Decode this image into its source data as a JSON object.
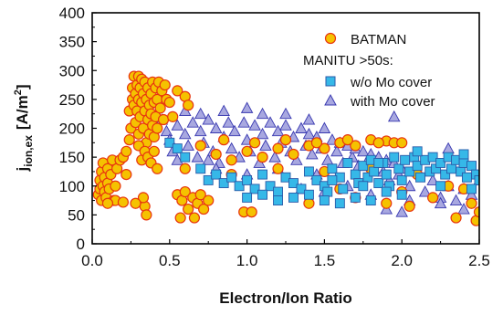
{
  "chart_data": {
    "type": "scatter",
    "xlabel": "Electron/Ion Ratio",
    "ylabel": "j",
    "ylabel_sub": "ion,ex",
    "ylabel_unit_pre": "[A/m",
    "ylabel_unit_sup": "2",
    "ylabel_unit_post": "]",
    "xlim": [
      0.0,
      2.5
    ],
    "ylim": [
      0,
      400
    ],
    "xticks": [
      "0.0",
      "0.5",
      "1.0",
      "1.5",
      "2.0",
      "2.5"
    ],
    "yticks": [
      "0",
      "50",
      "100",
      "150",
      "200",
      "250",
      "300",
      "350",
      "400"
    ],
    "grid": false,
    "legend_position": "top-right",
    "legend_heading": "MANITU >50s:",
    "colors": {
      "batman_fill": "#f5c200",
      "batman_edge": "#e8350f",
      "womo_fill": "#36b8e8",
      "womo_edge": "#2a5aa8",
      "withmo_fill": "#a8a8e0",
      "withmo_edge": "#3838b0"
    },
    "series": [
      {
        "name": "BATMAN",
        "marker": "circle",
        "points": [
          [
            0.04,
            85
          ],
          [
            0.05,
            95
          ],
          [
            0.05,
            110
          ],
          [
            0.06,
            125
          ],
          [
            0.06,
            75
          ],
          [
            0.07,
            100
          ],
          [
            0.07,
            140
          ],
          [
            0.08,
            90
          ],
          [
            0.08,
            115
          ],
          [
            0.09,
            80
          ],
          [
            0.1,
            105
          ],
          [
            0.1,
            130
          ],
          [
            0.11,
            95
          ],
          [
            0.12,
            120
          ],
          [
            0.13,
            145
          ],
          [
            0.14,
            75
          ],
          [
            0.15,
            100
          ],
          [
            0.16,
            130
          ],
          [
            0.18,
            145
          ],
          [
            0.2,
            150
          ],
          [
            0.22,
            160
          ],
          [
            0.22,
            120
          ],
          [
            0.24,
            180
          ],
          [
            0.24,
            230
          ],
          [
            0.25,
            200
          ],
          [
            0.26,
            250
          ],
          [
            0.26,
            270
          ],
          [
            0.27,
            240
          ],
          [
            0.27,
            290
          ],
          [
            0.28,
            260
          ],
          [
            0.28,
            210
          ],
          [
            0.29,
            275
          ],
          [
            0.29,
            230
          ],
          [
            0.3,
            290
          ],
          [
            0.3,
            250
          ],
          [
            0.3,
            190
          ],
          [
            0.31,
            270
          ],
          [
            0.31,
            220
          ],
          [
            0.32,
            285
          ],
          [
            0.32,
            245
          ],
          [
            0.33,
            200
          ],
          [
            0.33,
            260
          ],
          [
            0.34,
            230
          ],
          [
            0.34,
            280
          ],
          [
            0.35,
            175
          ],
          [
            0.35,
            250
          ],
          [
            0.36,
            215
          ],
          [
            0.36,
            270
          ],
          [
            0.37,
            240
          ],
          [
            0.37,
            190
          ],
          [
            0.38,
            260
          ],
          [
            0.38,
            225
          ],
          [
            0.39,
            280
          ],
          [
            0.39,
            205
          ],
          [
            0.4,
            245
          ],
          [
            0.4,
            185
          ],
          [
            0.41,
            270
          ],
          [
            0.41,
            220
          ],
          [
            0.42,
            250
          ],
          [
            0.42,
            200
          ],
          [
            0.43,
            280
          ],
          [
            0.44,
            235
          ],
          [
            0.45,
            265
          ],
          [
            0.46,
            215
          ],
          [
            0.47,
            275
          ],
          [
            0.48,
            250
          ],
          [
            0.5,
            245
          ],
          [
            0.52,
            220
          ],
          [
            0.55,
            265
          ],
          [
            0.6,
            255
          ],
          [
            0.62,
            240
          ],
          [
            0.3,
            170
          ],
          [
            0.32,
            145
          ],
          [
            0.34,
            160
          ],
          [
            0.36,
            150
          ],
          [
            0.38,
            140
          ],
          [
            0.4,
            160
          ],
          [
            0.42,
            130
          ],
          [
            0.34,
            65
          ],
          [
            0.35,
            50
          ],
          [
            0.33,
            80
          ],
          [
            0.28,
            70
          ],
          [
            0.15,
            75
          ],
          [
            0.1,
            70
          ],
          [
            0.2,
            72
          ],
          [
            0.55,
            85
          ],
          [
            0.58,
            75
          ],
          [
            0.6,
            90
          ],
          [
            0.62,
            60
          ],
          [
            0.65,
            80
          ],
          [
            0.68,
            70
          ],
          [
            0.7,
            85
          ],
          [
            0.72,
            60
          ],
          [
            0.75,
            75
          ],
          [
            0.57,
            45
          ],
          [
            0.66,
            45
          ],
          [
            0.98,
            55
          ],
          [
            1.03,
            55
          ],
          [
            0.8,
            155
          ],
          [
            0.9,
            145
          ],
          [
            1.0,
            160
          ],
          [
            1.1,
            150
          ],
          [
            1.2,
            165
          ],
          [
            1.3,
            155
          ],
          [
            1.4,
            170
          ],
          [
            1.5,
            165
          ],
          [
            1.6,
            175
          ],
          [
            1.7,
            170
          ],
          [
            1.8,
            180
          ],
          [
            1.9,
            178
          ],
          [
            1.95,
            175
          ],
          [
            2.0,
            175
          ],
          [
            0.7,
            170
          ],
          [
            0.85,
            180
          ],
          [
            1.05,
            175
          ],
          [
            1.25,
            180
          ],
          [
            1.45,
            175
          ],
          [
            1.65,
            180
          ],
          [
            1.85,
            175
          ],
          [
            0.6,
            130
          ],
          [
            0.9,
            120
          ],
          [
            1.2,
            130
          ],
          [
            1.5,
            125
          ],
          [
            1.8,
            130
          ],
          [
            2.1,
            120
          ],
          [
            2.3,
            100
          ],
          [
            2.4,
            95
          ],
          [
            2.45,
            70
          ],
          [
            2.35,
            45
          ],
          [
            2.48,
            40
          ],
          [
            2.5,
            55
          ],
          [
            2.2,
            80
          ],
          [
            2.0,
            90
          ],
          [
            1.7,
            80
          ],
          [
            1.4,
            70
          ],
          [
            1.6,
            95
          ],
          [
            2.05,
            65
          ],
          [
            1.9,
            70
          ]
        ]
      },
      {
        "name": "w/o Mo cover",
        "marker": "square",
        "points": [
          [
            0.5,
            175
          ],
          [
            0.55,
            165
          ],
          [
            0.6,
            150
          ],
          [
            0.7,
            130
          ],
          [
            0.75,
            110
          ],
          [
            0.8,
            120
          ],
          [
            0.85,
            105
          ],
          [
            0.9,
            115
          ],
          [
            0.95,
            100
          ],
          [
            1.0,
            110
          ],
          [
            1.05,
            95
          ],
          [
            1.1,
            120
          ],
          [
            1.15,
            100
          ],
          [
            1.2,
            90
          ],
          [
            1.25,
            115
          ],
          [
            1.3,
            105
          ],
          [
            1.35,
            95
          ],
          [
            1.4,
            125
          ],
          [
            1.45,
            110
          ],
          [
            1.5,
            100
          ],
          [
            1.52,
            90
          ],
          [
            1.55,
            130
          ],
          [
            1.6,
            115
          ],
          [
            1.62,
            95
          ],
          [
            1.65,
            140
          ],
          [
            1.7,
            120
          ],
          [
            1.72,
            105
          ],
          [
            1.75,
            135
          ],
          [
            1.78,
            115
          ],
          [
            1.8,
            145
          ],
          [
            1.82,
            125
          ],
          [
            1.85,
            105
          ],
          [
            1.88,
            140
          ],
          [
            1.9,
            120
          ],
          [
            1.92,
            100
          ],
          [
            1.95,
            150
          ],
          [
            1.98,
            130
          ],
          [
            2.0,
            110
          ],
          [
            2.02,
            145
          ],
          [
            2.05,
            125
          ],
          [
            2.08,
            150
          ],
          [
            2.1,
            135
          ],
          [
            2.12,
            115
          ],
          [
            2.15,
            145
          ],
          [
            2.18,
            125
          ],
          [
            2.2,
            150
          ],
          [
            2.22,
            130
          ],
          [
            2.25,
            140
          ],
          [
            2.28,
            120
          ],
          [
            2.3,
            150
          ],
          [
            2.32,
            130
          ],
          [
            2.35,
            145
          ],
          [
            2.38,
            125
          ],
          [
            2.4,
            140
          ],
          [
            2.42,
            115
          ],
          [
            2.45,
            135
          ],
          [
            2.48,
            120
          ],
          [
            2.5,
            110
          ],
          [
            1.3,
            80
          ],
          [
            1.4,
            85
          ],
          [
            1.5,
            75
          ],
          [
            1.6,
            70
          ],
          [
            1.7,
            80
          ],
          [
            1.8,
            75
          ],
          [
            1.9,
            90
          ],
          [
            2.0,
            85
          ],
          [
            1.2,
            75
          ],
          [
            1.1,
            85
          ],
          [
            1.0,
            80
          ],
          [
            1.55,
            110
          ],
          [
            1.85,
            140
          ],
          [
            2.25,
            100
          ],
          [
            2.45,
            95
          ],
          [
            2.4,
            155
          ],
          [
            2.1,
            160
          ],
          [
            1.75,
            100
          ]
        ]
      },
      {
        "name": "with Mo cover",
        "marker": "triangle",
        "points": [
          [
            0.45,
            215
          ],
          [
            0.48,
            195
          ],
          [
            0.5,
            180
          ],
          [
            0.52,
            160
          ],
          [
            0.55,
            145
          ],
          [
            0.55,
            205
          ],
          [
            0.6,
            190
          ],
          [
            0.62,
            170
          ],
          [
            0.65,
            210
          ],
          [
            0.68,
            150
          ],
          [
            0.7,
            195
          ],
          [
            0.72,
            175
          ],
          [
            0.75,
            215
          ],
          [
            0.78,
            160
          ],
          [
            0.8,
            200
          ],
          [
            0.82,
            140
          ],
          [
            0.85,
            185
          ],
          [
            0.88,
            210
          ],
          [
            0.9,
            165
          ],
          [
            0.92,
            195
          ],
          [
            0.95,
            150
          ],
          [
            0.98,
            210
          ],
          [
            1.0,
            180
          ],
          [
            1.02,
            160
          ],
          [
            1.05,
            205
          ],
          [
            1.08,
            140
          ],
          [
            1.1,
            190
          ],
          [
            1.12,
            170
          ],
          [
            1.15,
            210
          ],
          [
            1.18,
            150
          ],
          [
            1.2,
            195
          ],
          [
            1.22,
            175
          ],
          [
            1.25,
            205
          ],
          [
            1.28,
            160
          ],
          [
            1.3,
            185
          ],
          [
            1.32,
            145
          ],
          [
            1.35,
            200
          ],
          [
            1.38,
            170
          ],
          [
            1.4,
            190
          ],
          [
            1.42,
            155
          ],
          [
            1.45,
            185
          ],
          [
            1.48,
            165
          ],
          [
            1.5,
            200
          ],
          [
            1.52,
            145
          ],
          [
            1.55,
            180
          ],
          [
            1.58,
            160
          ],
          [
            1.6,
            175
          ],
          [
            1.62,
            140
          ],
          [
            1.65,
            170
          ],
          [
            1.68,
            150
          ],
          [
            1.7,
            165
          ],
          [
            1.72,
            135
          ],
          [
            1.75,
            160
          ],
          [
            1.78,
            145
          ],
          [
            1.8,
            155
          ],
          [
            1.82,
            130
          ],
          [
            1.85,
            150
          ],
          [
            1.88,
            125
          ],
          [
            1.9,
            145
          ],
          [
            1.92,
            110
          ],
          [
            1.95,
            140
          ],
          [
            1.98,
            120
          ],
          [
            2.0,
            130
          ],
          [
            2.05,
            100
          ],
          [
            2.1,
            125
          ],
          [
            2.15,
            90
          ],
          [
            2.2,
            110
          ],
          [
            2.25,
            80
          ],
          [
            2.3,
            100
          ],
          [
            2.35,
            75
          ],
          [
            2.4,
            95
          ],
          [
            2.45,
            85
          ],
          [
            2.5,
            110
          ],
          [
            0.6,
            230
          ],
          [
            0.7,
            225
          ],
          [
            0.85,
            230
          ],
          [
            1.0,
            235
          ],
          [
            1.1,
            225
          ],
          [
            1.25,
            225
          ],
          [
            1.4,
            215
          ],
          [
            1.95,
            220
          ],
          [
            2.3,
            165
          ],
          [
            1.9,
            60
          ],
          [
            2.0,
            55
          ],
          [
            2.05,
            75
          ],
          [
            1.35,
            95
          ],
          [
            1.5,
            90
          ],
          [
            1.65,
            100
          ],
          [
            1.8,
            85
          ],
          [
            2.25,
            70
          ],
          [
            2.4,
            60
          ],
          [
            1.0,
            120
          ],
          [
            1.2,
            130
          ],
          [
            1.45,
            120
          ],
          [
            0.8,
            130
          ],
          [
            0.75,
            145
          ]
        ]
      }
    ]
  }
}
